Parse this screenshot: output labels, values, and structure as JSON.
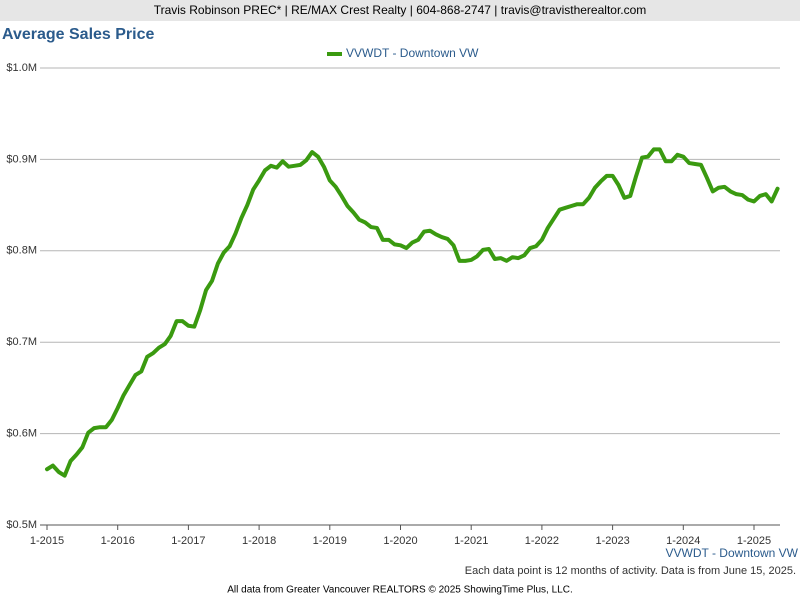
{
  "header": "Travis Robinson PREC* | RE/MAX Crest Realty | 604-868-2747 | travis@travistherealtor.com",
  "chart_data": {
    "type": "line",
    "title": "Average Sales Price",
    "categories": [
      "1-2015",
      null,
      null,
      null,
      null,
      null,
      null,
      null,
      null,
      null,
      null,
      null,
      "1-2016",
      null,
      null,
      null,
      null,
      null,
      null,
      null,
      null,
      null,
      null,
      null,
      "1-2017",
      null,
      null,
      null,
      null,
      null,
      null,
      null,
      null,
      null,
      null,
      null,
      "1-2018",
      null,
      null,
      null,
      null,
      null,
      null,
      null,
      null,
      null,
      null,
      null,
      "1-2019",
      null,
      null,
      null,
      null,
      null,
      null,
      null,
      null,
      null,
      null,
      null,
      "1-2020",
      null,
      null,
      null,
      null,
      null,
      null,
      null,
      null,
      null,
      null,
      null,
      "1-2021",
      null,
      null,
      null,
      null,
      null,
      null,
      null,
      null,
      null,
      null,
      null,
      "1-2022",
      null,
      null,
      null,
      null,
      null,
      null,
      null,
      null,
      null,
      null,
      null,
      "1-2023",
      null,
      null,
      null,
      null,
      null,
      null,
      null,
      null,
      null,
      null,
      null,
      "1-2024",
      null,
      null,
      null,
      null,
      null,
      null,
      null,
      null,
      null,
      null,
      null,
      "1-2025",
      null,
      null,
      null,
      null
    ],
    "series": [
      {
        "name": "VVWDT - Downtown VW",
        "color": "#3a9a10",
        "values": [
          0.561,
          0.565,
          0.558,
          0.554,
          0.57,
          0.577,
          0.585,
          0.601,
          0.606,
          0.607,
          0.607,
          0.615,
          0.628,
          0.642,
          0.653,
          0.664,
          0.668,
          0.684,
          0.688,
          0.694,
          0.698,
          0.707,
          0.723,
          0.723,
          0.718,
          0.717,
          0.735,
          0.757,
          0.767,
          0.786,
          0.798,
          0.805,
          0.819,
          0.836,
          0.85,
          0.867,
          0.877,
          0.888,
          0.893,
          0.891,
          0.898,
          0.892,
          0.893,
          0.894,
          0.899,
          0.908,
          0.903,
          0.892,
          0.877,
          0.87,
          0.86,
          0.849,
          0.842,
          0.834,
          0.831,
          0.826,
          0.825,
          0.812,
          0.812,
          0.807,
          0.806,
          0.803,
          0.809,
          0.812,
          0.821,
          0.822,
          0.818,
          0.815,
          0.813,
          0.806,
          0.789,
          0.789,
          0.79,
          0.794,
          0.801,
          0.802,
          0.791,
          0.792,
          0.789,
          0.793,
          0.792,
          0.795,
          0.803,
          0.805,
          0.812,
          0.825,
          0.835,
          0.845,
          0.847,
          0.849,
          0.851,
          0.851,
          0.858,
          0.869,
          0.876,
          0.882,
          0.882,
          0.872,
          0.858,
          0.86,
          0.882,
          0.902,
          0.903,
          0.911,
          0.911,
          0.898,
          0.898,
          0.905,
          0.903,
          0.896,
          0.895,
          0.894,
          0.88,
          0.865,
          0.869,
          0.87,
          0.865,
          0.862,
          0.861,
          0.856,
          0.854,
          0.86,
          0.862,
          0.854,
          0.868
        ]
      }
    ],
    "ylim": [
      0.5,
      1.0
    ],
    "yticks": [
      {
        "value": 0.5,
        "label": "$0.5M"
      },
      {
        "value": 0.6,
        "label": "$0.6M"
      },
      {
        "value": 0.7,
        "label": "$0.7M"
      },
      {
        "value": 0.8,
        "label": "$0.8M"
      },
      {
        "value": 0.9,
        "label": "$0.9M"
      },
      {
        "value": 1.0,
        "label": "$1.0M"
      }
    ],
    "grid": true,
    "legend": "top",
    "axis_caption": "VVWDT - Downtown VW"
  },
  "note": "Each data point is 12 months of activity. Data is from June 15, 2025.",
  "source": "All data from Greater Vancouver REALTORS © 2025 ShowingTime Plus, LLC."
}
